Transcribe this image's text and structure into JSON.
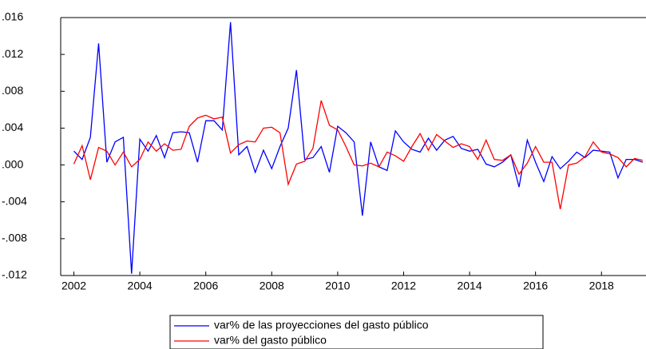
{
  "chart_data": {
    "type": "line",
    "x": [
      2002,
      2002.25,
      2002.5,
      2002.75,
      2003,
      2003.25,
      2003.5,
      2003.75,
      2004,
      2004.25,
      2004.5,
      2004.75,
      2005,
      2005.25,
      2005.5,
      2005.75,
      2006,
      2006.25,
      2006.5,
      2006.75,
      2007,
      2007.25,
      2007.5,
      2007.75,
      2008,
      2008.25,
      2008.5,
      2008.75,
      2009,
      2009.25,
      2009.5,
      2009.75,
      2010,
      2010.25,
      2010.5,
      2010.75,
      2011,
      2011.25,
      2011.5,
      2011.75,
      2012,
      2012.25,
      2012.5,
      2012.75,
      2013,
      2013.25,
      2013.5,
      2013.75,
      2014,
      2014.25,
      2014.5,
      2014.75,
      2015,
      2015.25,
      2015.5,
      2015.75,
      2016,
      2016.25,
      2016.5,
      2016.75,
      2017,
      2017.25,
      2017.5,
      2017.75,
      2018,
      2018.25,
      2018.5,
      2018.75,
      2019,
      2019.25
    ],
    "series": [
      {
        "name": "var% de las proyecciones del gasto público",
        "color": "#0000ff",
        "values": [
          0.0015,
          0.0006,
          0.003,
          0.0132,
          0.0003,
          0.0025,
          0.003,
          -0.0118,
          0.0028,
          0.0015,
          0.0032,
          0.0008,
          0.0035,
          0.0036,
          0.0035,
          0.0003,
          0.0048,
          0.0048,
          0.0038,
          0.0155,
          0.0011,
          0.002,
          -0.0008,
          0.0016,
          -0.0004,
          0.002,
          0.004,
          0.0103,
          0.0006,
          0.0008,
          0.002,
          -0.0008,
          0.0042,
          0.0035,
          0.0025,
          -0.0055,
          0.0025,
          -0.0002,
          -0.0006,
          0.0037,
          0.0025,
          0.0017,
          0.0014,
          0.0029,
          0.0016,
          0.0027,
          0.0031,
          0.0018,
          0.0015,
          0.0017,
          0.0001,
          -0.0002,
          0.0003,
          0.0011,
          -0.0024,
          0.0027,
          0.0003,
          -0.0018,
          0.0009,
          -0.0004,
          0.0004,
          0.0014,
          0.0008,
          0.0016,
          0.0015,
          0.0014,
          -0.0014,
          0.0006,
          0.0006,
          0.0003
        ]
      },
      {
        "name": "var% del gasto público",
        "color": "#ff0000",
        "values": [
          0.0001,
          0.0021,
          -0.0016,
          0.0019,
          0.0015,
          0.0,
          0.0014,
          -0.0002,
          0.0006,
          0.0025,
          0.0015,
          0.0023,
          0.0016,
          0.0017,
          0.0042,
          0.0051,
          0.0054,
          0.005,
          0.0052,
          0.0013,
          0.0022,
          0.0026,
          0.0025,
          0.004,
          0.0041,
          0.0035,
          -0.0021,
          0.0001,
          0.0004,
          0.0018,
          0.007,
          0.0043,
          0.0038,
          0.002,
          0.0,
          -0.0001,
          0.0002,
          -0.0002,
          0.0014,
          0.001,
          0.0004,
          0.002,
          0.0034,
          0.0016,
          0.0033,
          0.0026,
          0.0019,
          0.0023,
          0.002,
          0.0006,
          0.0027,
          0.0006,
          0.0005,
          0.0011,
          -0.001,
          0.0002,
          0.002,
          0.0003,
          0.0003,
          -0.0048,
          0.0,
          0.0002,
          0.0009,
          0.0025,
          0.0014,
          0.0012,
          0.0008,
          -0.0002,
          0.0007,
          0.0005
        ]
      }
    ],
    "xlim": [
      2001.6,
      2019.35
    ],
    "xticks": [
      2002,
      2004,
      2006,
      2008,
      2010,
      2012,
      2014,
      2016,
      2018
    ],
    "ylim": [
      -0.012,
      0.016
    ],
    "yticks": [
      {
        "value": -0.012,
        "label": "-.012"
      },
      {
        "value": -0.008,
        "label": "-.008"
      },
      {
        "value": -0.004,
        "label": "-.004"
      },
      {
        "value": 0,
        "label": ".000"
      },
      {
        "value": 0.004,
        "label": ".004"
      },
      {
        "value": 0.008,
        "label": ".008"
      },
      {
        "value": 0.012,
        "label": ".012"
      },
      {
        "value": 0.016,
        "label": ".016"
      }
    ],
    "legend": "bottom"
  }
}
